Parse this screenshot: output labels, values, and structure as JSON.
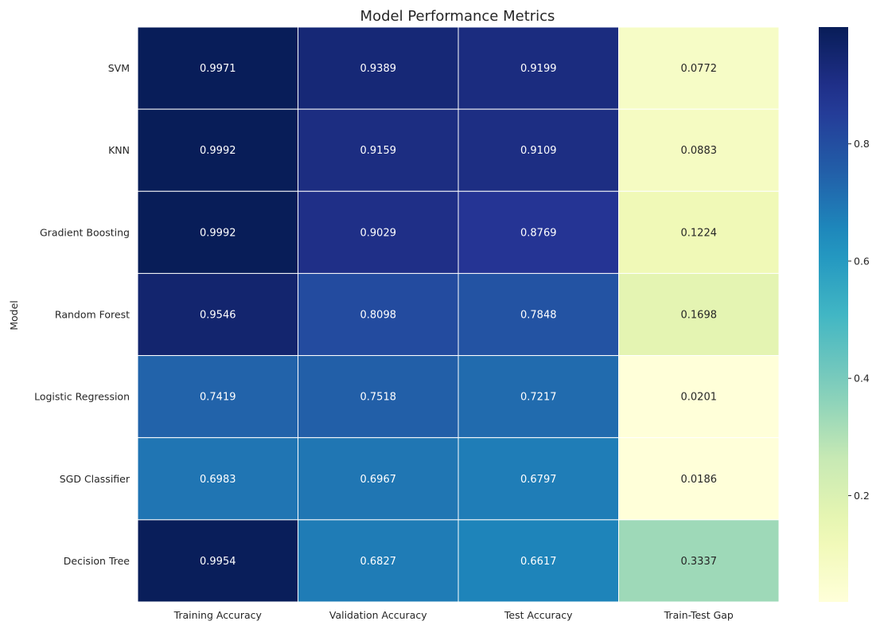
{
  "chart_data": {
    "type": "heatmap",
    "title": "Model Performance Metrics",
    "ylabel": "Model",
    "xlabel": "",
    "columns": [
      "Training Accuracy",
      "Validation Accuracy",
      "Test Accuracy",
      "Train-Test Gap"
    ],
    "rows": [
      "SVM",
      "KNN",
      "Gradient Boosting",
      "Random Forest",
      "Logistic Regression",
      "SGD Classifier",
      "Decision Tree"
    ],
    "values": [
      [
        0.9971,
        0.9389,
        0.9199,
        0.0772
      ],
      [
        0.9992,
        0.9159,
        0.9109,
        0.0883
      ],
      [
        0.9992,
        0.9029,
        0.8769,
        0.1224
      ],
      [
        0.9546,
        0.8098,
        0.7848,
        0.1698
      ],
      [
        0.7419,
        0.7518,
        0.7217,
        0.0201
      ],
      [
        0.6983,
        0.6967,
        0.6797,
        0.0186
      ],
      [
        0.9954,
        0.6827,
        0.6617,
        0.3337
      ]
    ],
    "value_labels": [
      [
        "0.9971",
        "0.9389",
        "0.9199",
        "0.0772"
      ],
      [
        "0.9992",
        "0.9159",
        "0.9109",
        "0.0883"
      ],
      [
        "0.9992",
        "0.9029",
        "0.8769",
        "0.1224"
      ],
      [
        "0.9546",
        "0.8098",
        "0.7848",
        "0.1698"
      ],
      [
        "0.7419",
        "0.7518",
        "0.7217",
        "0.0201"
      ],
      [
        "0.6983",
        "0.6967",
        "0.6797",
        "0.0186"
      ],
      [
        "0.9954",
        "0.6827",
        "0.6617",
        "0.3337"
      ]
    ],
    "colormap": "YlGnBu",
    "color_range": [
      0.0186,
      0.9992
    ],
    "colorbar_ticks": [
      {
        "value": 0.2,
        "label": "0.2"
      },
      {
        "value": 0.4,
        "label": "0.4"
      },
      {
        "value": 0.6,
        "label": "0.6"
      },
      {
        "value": 0.8,
        "label": "0.8"
      }
    ],
    "cell_border_color": "#ffffff",
    "grid": false,
    "legend": "colorbar-right"
  }
}
